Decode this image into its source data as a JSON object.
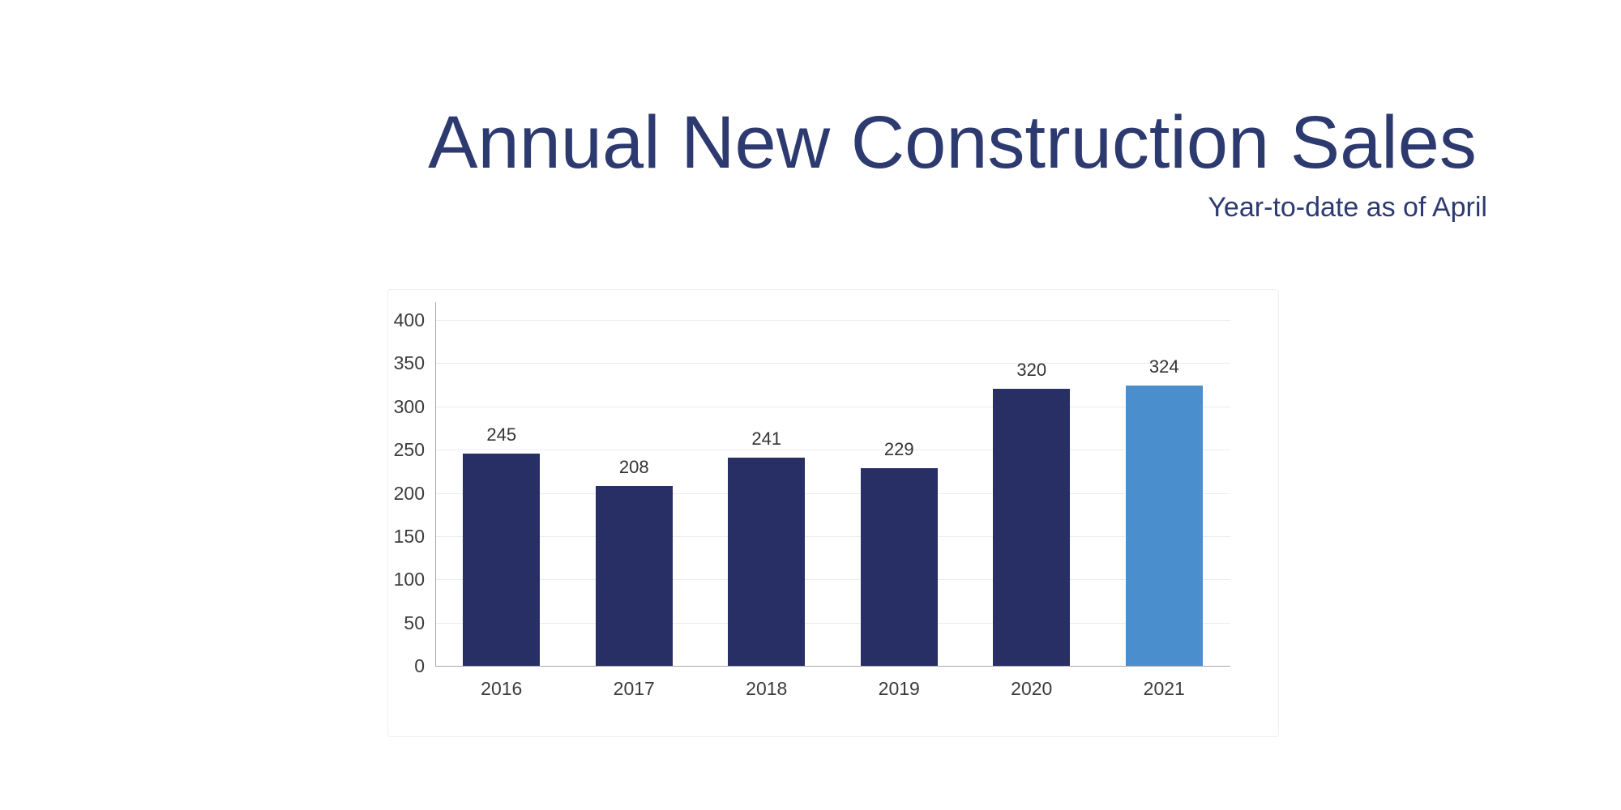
{
  "page": {
    "background": "#ffffff"
  },
  "header": {
    "title": "Annual New Construction Sales",
    "subtitle": "Year-to-date as of April",
    "title_color": "#2d3a70"
  },
  "chart_data": {
    "type": "bar",
    "title": "Annual New Construction Sales",
    "subtitle": "Year-to-date as of April",
    "categories": [
      "2016",
      "2017",
      "2018",
      "2019",
      "2020",
      "2021"
    ],
    "values": [
      245,
      208,
      241,
      229,
      320,
      324
    ],
    "value_labels": [
      "245",
      "208",
      "241",
      "229",
      "320",
      "324"
    ],
    "bar_colors": [
      "#272f64",
      "#272f64",
      "#272f64",
      "#272f64",
      "#272f64",
      "#4b8ecd"
    ],
    "highlight_index": 5,
    "y_ticks": [
      0,
      50,
      100,
      150,
      200,
      250,
      300,
      350,
      400
    ],
    "ylim": [
      0,
      400
    ],
    "xlabel": "",
    "ylabel": "",
    "grid": true,
    "legend": false,
    "colors": {
      "bar_default": "#272f64",
      "bar_highlight": "#4b8ecd",
      "grid": "#e9ecf2",
      "axis": "#a9a9ad",
      "tick_label": "#3c3c3c",
      "value_label": "#333333"
    }
  }
}
